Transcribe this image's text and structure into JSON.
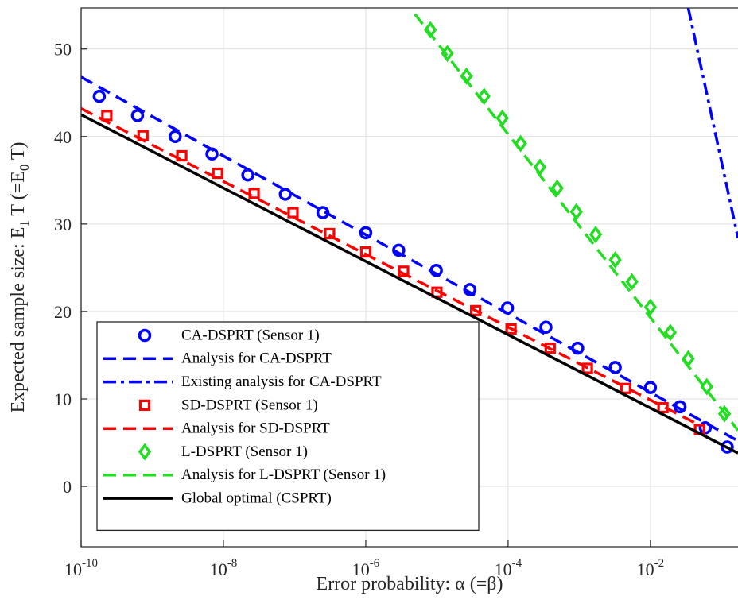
{
  "chart_data": {
    "type": "line",
    "x_label": "Error probability: α (=β)",
    "y_label_parts": [
      "Expected sample size: E",
      "1",
      " T (=E",
      "0",
      " T)"
    ],
    "xscale": "log",
    "xlim": [
      1e-10,
      0.17
    ],
    "ylim": [
      -6.9,
      54.7
    ],
    "xticks": [
      {
        "value": 1e-10,
        "label": "10",
        "exponent": "-10"
      },
      {
        "value": 1e-08,
        "label": "10",
        "exponent": "-8"
      },
      {
        "value": 1e-06,
        "label": "10",
        "exponent": "-6"
      },
      {
        "value": 0.0001,
        "label": "10",
        "exponent": "-4"
      },
      {
        "value": 0.01,
        "label": "10",
        "exponent": "-2"
      }
    ],
    "yticks": [
      0,
      10,
      20,
      30,
      40,
      50
    ],
    "grid": true,
    "legend": "lower left",
    "series": [
      {
        "name": "CA-DSPRT (Sensor 1)",
        "color": "#0000ff",
        "style": "circle",
        "x": [
          1.8e-10,
          6.2e-10,
          2.1e-09,
          6.9e-09,
          2.2e-08,
          7.4e-08,
          2.5e-07,
          1e-06,
          2.9e-06,
          9.8e-06,
          2.9e-05,
          9.8e-05,
          0.00034,
          0.00095,
          0.0032,
          0.01,
          0.026,
          0.059,
          0.12
        ],
        "values": [
          44.6,
          42.4,
          40.0,
          38.0,
          35.6,
          33.4,
          31.3,
          29.0,
          27.0,
          24.7,
          22.5,
          20.4,
          18.2,
          15.8,
          13.6,
          11.3,
          9.1,
          6.7,
          4.5
        ]
      },
      {
        "name": "Analysis for CA-DSPRT",
        "color": "#0000ff",
        "style": "dashed",
        "x": [
          1e-10,
          0.17
        ],
        "values": [
          46.8,
          5.2
        ]
      },
      {
        "name": "Existing analysis for CA-DSPRT",
        "color": "#0000ff",
        "style": "dashdot",
        "x": [
          0.034,
          0.17
        ],
        "values": [
          54.7,
          28.4
        ]
      },
      {
        "name": "SD-DSPRT (Sensor 1)",
        "color": "#ff0000",
        "style": "square",
        "x": [
          2.3e-10,
          7.4e-10,
          2.6e-09,
          8.3e-09,
          2.7e-08,
          9.5e-08,
          3.1e-07,
          1e-06,
          3.4e-06,
          1e-05,
          3.5e-05,
          0.00011,
          0.00039,
          0.0013,
          0.0045,
          0.015,
          0.049
        ],
        "values": [
          42.4,
          40.1,
          37.8,
          35.8,
          33.5,
          31.3,
          28.9,
          26.8,
          24.6,
          22.2,
          20.1,
          18.0,
          15.8,
          13.5,
          11.2,
          9.0,
          6.5
        ]
      },
      {
        "name": "Analysis for SD-DSPRT",
        "color": "#ff0000",
        "style": "dashed",
        "x": [
          1e-10,
          0.049
        ],
        "values": [
          43.2,
          7.0
        ]
      },
      {
        "name": "L-DSPRT (Sensor 1)",
        "color": "#22dd22",
        "style": "diamond",
        "x": [
          8.1e-06,
          1.4e-05,
          2.6e-05,
          4.6e-05,
          8.3e-05,
          0.00015,
          0.00028,
          0.00049,
          0.00091,
          0.0017,
          0.0032,
          0.0055,
          0.01,
          0.019,
          0.034,
          0.062,
          0.11
        ],
        "values": [
          52.2,
          49.5,
          46.9,
          44.6,
          42.1,
          39.2,
          36.5,
          34.1,
          31.4,
          28.8,
          25.9,
          23.4,
          20.5,
          17.6,
          14.6,
          11.4,
          8.3
        ]
      },
      {
        "name": "Analysis for L-DSPRT (Sensor 1)",
        "color": "#22dd22",
        "style": "dashed",
        "x": [
          4.9e-06,
          0.17
        ],
        "values": [
          54.0,
          6.4
        ]
      },
      {
        "name": "Global optimal (CSPRT)",
        "color": "#000000",
        "style": "solid",
        "x": [
          1e-10,
          0.17
        ],
        "values": [
          42.5,
          3.8
        ]
      }
    ]
  }
}
